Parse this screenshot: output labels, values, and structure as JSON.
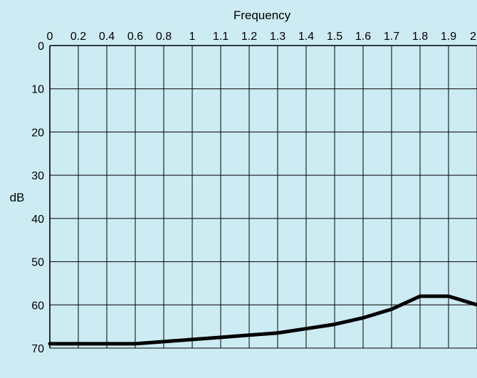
{
  "colors": {
    "background": "#cdebf3",
    "grid": "#000000",
    "line": "#000000"
  },
  "chart_data": {
    "type": "line",
    "title": "",
    "xlabel": "Frequency",
    "ylabel": "dB",
    "x_axis_position": "top",
    "y_axis_inverted": true,
    "grid": true,
    "x_ticks": [
      "0",
      "0.2",
      "0.4",
      "0.6",
      "0.8",
      "1",
      "1.1",
      "1.2",
      "1.3",
      "1.4",
      "1.5",
      "1.6",
      "1.7",
      "1.8",
      "1.9",
      "2"
    ],
    "y_ticks": [
      0,
      10,
      20,
      30,
      40,
      50,
      60,
      70
    ],
    "ylim": [
      0,
      70
    ],
    "series": [
      {
        "x": [
          "0",
          "0.2",
          "0.4",
          "0.6",
          "0.8",
          "1",
          "1.1",
          "1.2",
          "1.3",
          "1.4",
          "1.5",
          "1.6",
          "1.7",
          "1.8",
          "1.9",
          "2"
        ],
        "values": [
          69,
          69,
          69,
          69,
          68.5,
          68,
          67.5,
          67,
          66.5,
          65.5,
          64.5,
          63,
          61,
          58,
          58,
          60
        ]
      }
    ]
  }
}
